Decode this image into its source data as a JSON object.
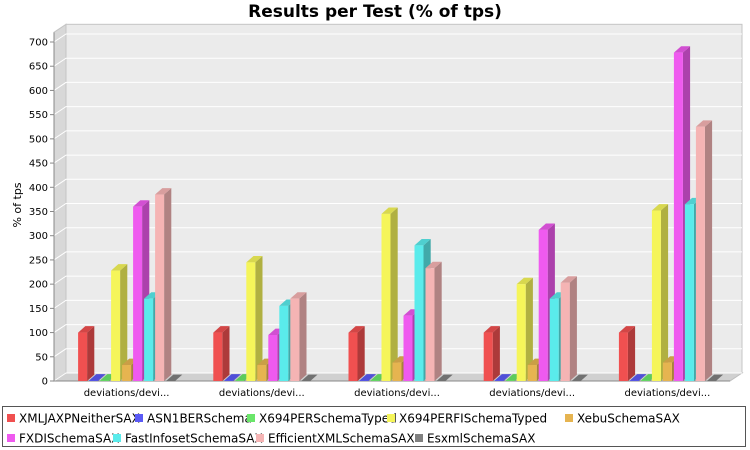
{
  "chart_data": {
    "type": "bar",
    "title": "Results per Test (% of tps)",
    "ylabel": "% of tps",
    "xlabel": "",
    "ylim": [
      0,
      720
    ],
    "yticks": [
      0,
      50,
      100,
      150,
      200,
      250,
      300,
      350,
      400,
      450,
      500,
      550,
      600,
      650,
      700
    ],
    "grid": true,
    "legend_position": "bottom",
    "categories": [
      "deviations/devi...",
      "deviations/devi...",
      "deviations/devi...",
      "deviations/devi...",
      "deviations/devi..."
    ],
    "series": [
      {
        "name": "XMLJAXPNeitherSAX",
        "color": "#f05050",
        "values": [
          100,
          100,
          100,
          100,
          100
        ]
      },
      {
        "name": "ASN1BERSchema",
        "color": "#5a5af5",
        "values": [
          1,
          1,
          1,
          1,
          1
        ]
      },
      {
        "name": "X694PERSchemaTyped",
        "color": "#6ae66a",
        "values": [
          1,
          1,
          1,
          1,
          1
        ]
      },
      {
        "name": "X694PERFISchemaTyped",
        "color": "#f5f55a",
        "values": [
          228,
          245,
          345,
          200,
          352
        ]
      },
      {
        "name": "XebuSchemaSAX",
        "color": "#e6b450",
        "values": [
          33,
          33,
          38,
          33,
          38
        ]
      },
      {
        "name": "FXDISchemaSAX",
        "color": "#ef5aef",
        "values": [
          360,
          95,
          135,
          312,
          678
        ]
      },
      {
        "name": "FastInfosetSchemaSAX",
        "color": "#5aebeb",
        "values": [
          170,
          155,
          280,
          170,
          365
        ]
      },
      {
        "name": "EfficientXMLSchemaSAX",
        "color": "#f5b4b4",
        "values": [
          385,
          170,
          233,
          203,
          525
        ]
      },
      {
        "name": "EsxmlSchemaSAX",
        "color": "#808080",
        "values": [
          0,
          0,
          0,
          0,
          0
        ]
      }
    ]
  }
}
